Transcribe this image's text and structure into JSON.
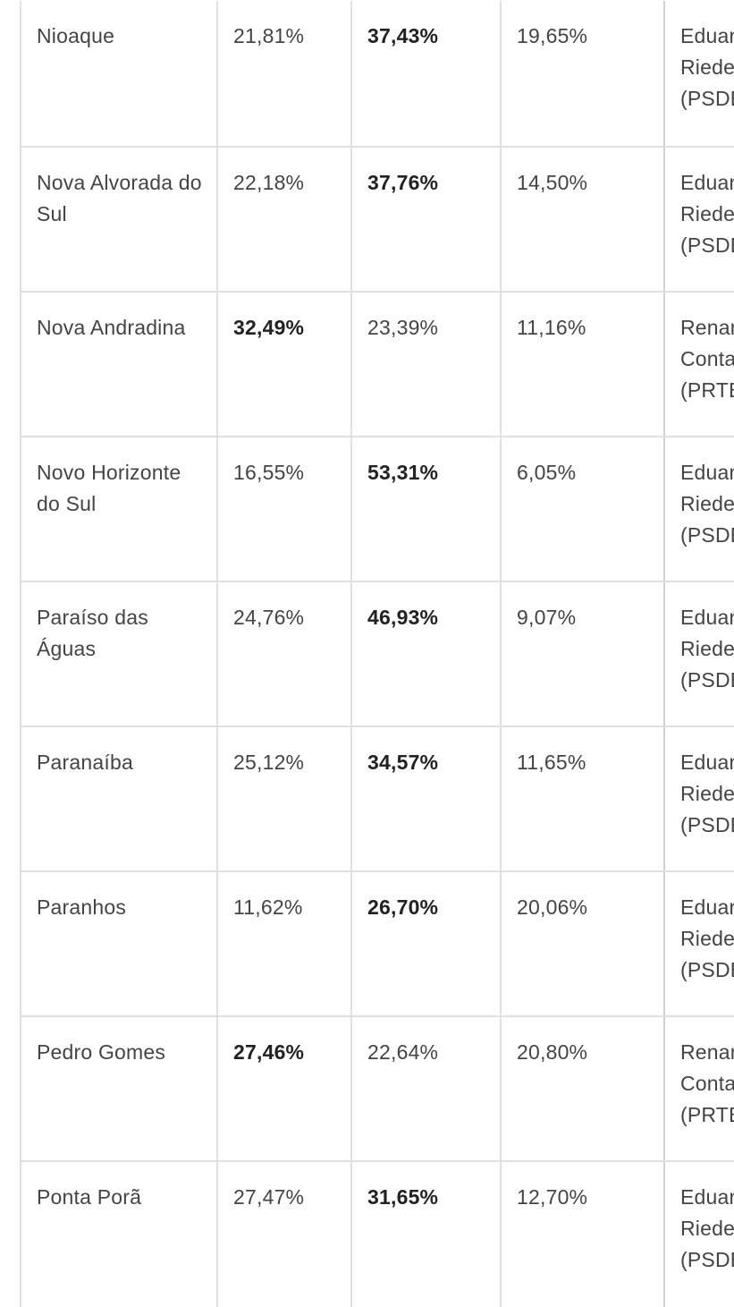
{
  "table": {
    "rows": [
      {
        "municipality": "Nioaque",
        "c1": "21,81%",
        "c2": "37,43%",
        "c3": "19,65%",
        "leader": "Eduardo Riedel (PSDB)",
        "winner_col": "c2"
      },
      {
        "municipality": "Nova Alvorada do Sul",
        "c1": "22,18%",
        "c2": "37,76%",
        "c3": "14,50%",
        "leader": "Eduardo Riedel (PSDB)",
        "winner_col": "c2"
      },
      {
        "municipality": "Nova Andradina",
        "c1": "32,49%",
        "c2": "23,39%",
        "c3": "11,16%",
        "leader": "Renan Contar (PRTB)",
        "winner_col": "c1"
      },
      {
        "municipality": "Novo Horizonte do Sul",
        "c1": "16,55%",
        "c2": "53,31%",
        "c3": "6,05%",
        "leader": "Eduardo Riedel (PSDB)",
        "winner_col": "c2"
      },
      {
        "municipality": "Paraíso das Águas",
        "c1": "24,76%",
        "c2": "46,93%",
        "c3": "9,07%",
        "leader": "Eduardo Riedel (PSDB)",
        "winner_col": "c2"
      },
      {
        "municipality": "Paranaíba",
        "c1": "25,12%",
        "c2": "34,57%",
        "c3": "11,65%",
        "leader": "Eduardo Riedel (PSDB)",
        "winner_col": "c2"
      },
      {
        "municipality": "Paranhos",
        "c1": "11,62%",
        "c2": "26,70%",
        "c3": "20,06%",
        "leader": "Eduardo Riedel (PSDB)",
        "winner_col": "c2"
      },
      {
        "municipality": "Pedro Gomes",
        "c1": "27,46%",
        "c2": "22,64%",
        "c3": "20,80%",
        "leader": "Renan Contar (PRTB)",
        "winner_col": "c1"
      },
      {
        "municipality": "Ponta Porã",
        "c1": "27,47%",
        "c2": "31,65%",
        "c3": "12,70%",
        "leader": "Eduardo Riedel (PSDB)",
        "winner_col": "c2"
      }
    ]
  }
}
